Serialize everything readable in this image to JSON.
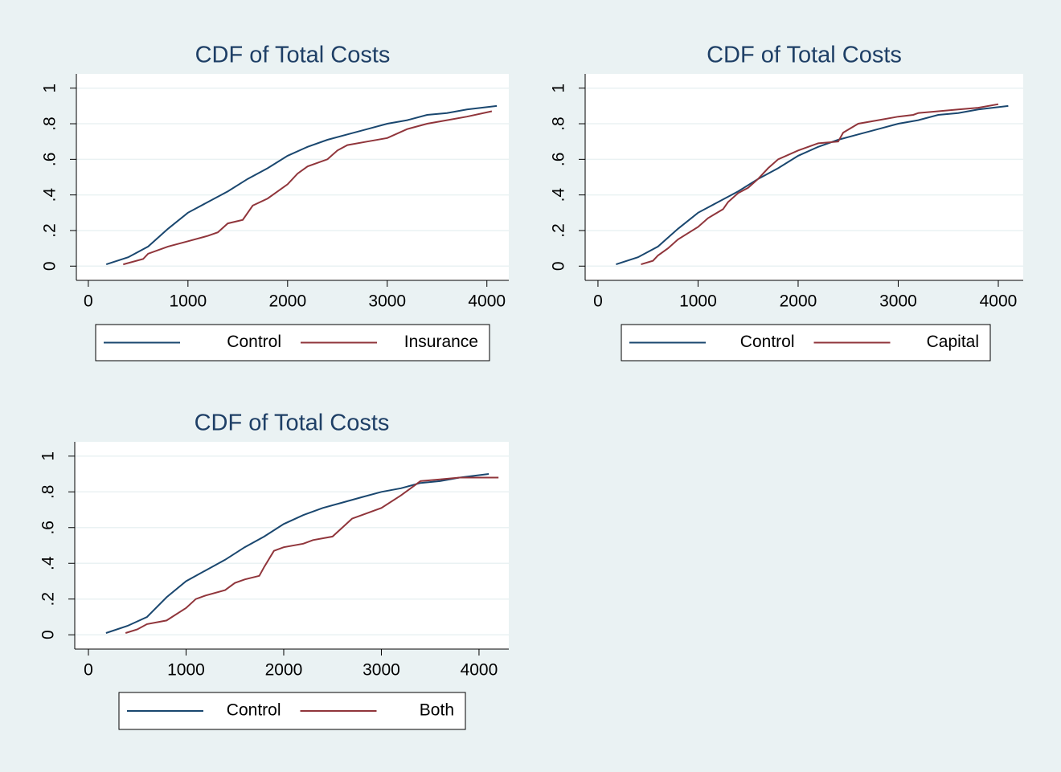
{
  "chart_data": [
    {
      "type": "line",
      "title": "CDF of Total Costs",
      "xlim": [
        -120,
        4220
      ],
      "xticks": [
        0,
        1000,
        2000,
        3000,
        4000
      ],
      "ylim": [
        -0.08,
        1.08
      ],
      "yticks": [
        0,
        {
          "value": 0.2,
          "label": ".2"
        },
        {
          "value": 0.4,
          "label": ".4"
        },
        {
          "value": 0.6,
          "label": ".6"
        },
        {
          "value": 0.8,
          "label": ".8"
        },
        1
      ],
      "grid": true,
      "series": [
        {
          "name": "Control",
          "color": "#1a476f",
          "x": [
            180,
            400,
            600,
            800,
            1000,
            1200,
            1400,
            1600,
            1800,
            2000,
            2200,
            2400,
            2600,
            2800,
            3000,
            3200,
            3400,
            3600,
            3800,
            4100
          ],
          "values": [
            0.01,
            0.05,
            0.11,
            0.21,
            0.3,
            0.36,
            0.42,
            0.49,
            0.55,
            0.62,
            0.67,
            0.71,
            0.74,
            0.77,
            0.8,
            0.82,
            0.85,
            0.86,
            0.88,
            0.9
          ]
        },
        {
          "name": "Insurance",
          "color": "#90353b",
          "x": [
            350,
            550,
            600,
            800,
            1000,
            1200,
            1300,
            1400,
            1550,
            1650,
            1800,
            2000,
            2100,
            2200,
            2400,
            2500,
            2600,
            2800,
            3000,
            3200,
            3400,
            3600,
            3800,
            4050
          ],
          "values": [
            0.01,
            0.04,
            0.07,
            0.11,
            0.14,
            0.17,
            0.19,
            0.24,
            0.26,
            0.34,
            0.38,
            0.46,
            0.52,
            0.56,
            0.6,
            0.65,
            0.68,
            0.7,
            0.72,
            0.77,
            0.8,
            0.82,
            0.84,
            0.87
          ]
        }
      ]
    },
    {
      "type": "line",
      "title": "CDF of Total Costs",
      "xlim": [
        -128,
        4249
      ],
      "xticks": [
        0,
        1000,
        2000,
        3000,
        4000
      ],
      "ylim": [
        -0.08,
        1.08
      ],
      "yticks": [
        0,
        {
          "value": 0.2,
          "label": ".2"
        },
        {
          "value": 0.4,
          "label": ".4"
        },
        {
          "value": 0.6,
          "label": ".6"
        },
        {
          "value": 0.8,
          "label": ".8"
        },
        1
      ],
      "grid": true,
      "series": [
        {
          "name": "Control",
          "color": "#1a476f",
          "x": [
            180,
            400,
            600,
            800,
            1000,
            1200,
            1400,
            1600,
            1800,
            2000,
            2200,
            2400,
            2600,
            2800,
            3000,
            3200,
            3400,
            3600,
            3800,
            4100
          ],
          "values": [
            0.01,
            0.05,
            0.11,
            0.21,
            0.3,
            0.36,
            0.42,
            0.49,
            0.55,
            0.62,
            0.67,
            0.71,
            0.74,
            0.77,
            0.8,
            0.82,
            0.85,
            0.86,
            0.88,
            0.9
          ]
        },
        {
          "name": "Capital",
          "color": "#90353b",
          "x": [
            430,
            550,
            600,
            700,
            800,
            1000,
            1100,
            1250,
            1300,
            1400,
            1500,
            1600,
            1700,
            1800,
            2000,
            2200,
            2400,
            2450,
            2600,
            2800,
            3000,
            3150,
            3200,
            3400,
            3600,
            3800,
            4000
          ],
          "values": [
            0.01,
            0.03,
            0.06,
            0.1,
            0.15,
            0.22,
            0.27,
            0.32,
            0.36,
            0.41,
            0.44,
            0.49,
            0.55,
            0.6,
            0.65,
            0.69,
            0.7,
            0.75,
            0.8,
            0.82,
            0.84,
            0.85,
            0.86,
            0.87,
            0.88,
            0.89,
            0.91
          ]
        }
      ]
    },
    {
      "type": "line",
      "title": "CDF of Total Costs",
      "xlim": [
        -140,
        4305
      ],
      "xticks": [
        0,
        1000,
        2000,
        3000,
        4000
      ],
      "ylim": [
        -0.08,
        1.08
      ],
      "yticks": [
        0,
        {
          "value": 0.2,
          "label": ".2"
        },
        {
          "value": 0.4,
          "label": ".4"
        },
        {
          "value": 0.6,
          "label": ".6"
        },
        {
          "value": 0.8,
          "label": ".8"
        },
        1
      ],
      "grid": true,
      "series": [
        {
          "name": "Control",
          "color": "#1a476f",
          "x": [
            180,
            400,
            600,
            800,
            1000,
            1200,
            1400,
            1600,
            1800,
            2000,
            2200,
            2400,
            2600,
            2800,
            3000,
            3200,
            3400,
            3600,
            3800,
            4100
          ],
          "values": [
            0.01,
            0.05,
            0.1,
            0.21,
            0.3,
            0.36,
            0.42,
            0.49,
            0.55,
            0.62,
            0.67,
            0.71,
            0.74,
            0.77,
            0.8,
            0.82,
            0.85,
            0.86,
            0.88,
            0.9
          ]
        },
        {
          "name": "Both",
          "color": "#90353b",
          "x": [
            380,
            500,
            600,
            800,
            1000,
            1100,
            1200,
            1400,
            1500,
            1600,
            1750,
            1800,
            1900,
            2000,
            2200,
            2300,
            2500,
            2600,
            2700,
            2800,
            3000,
            3200,
            3400,
            3600,
            3800,
            4200
          ],
          "values": [
            0.01,
            0.03,
            0.06,
            0.08,
            0.15,
            0.2,
            0.22,
            0.25,
            0.29,
            0.31,
            0.33,
            0.38,
            0.47,
            0.49,
            0.51,
            0.53,
            0.55,
            0.6,
            0.65,
            0.67,
            0.71,
            0.78,
            0.86,
            0.87,
            0.88,
            0.88
          ]
        }
      ]
    }
  ]
}
